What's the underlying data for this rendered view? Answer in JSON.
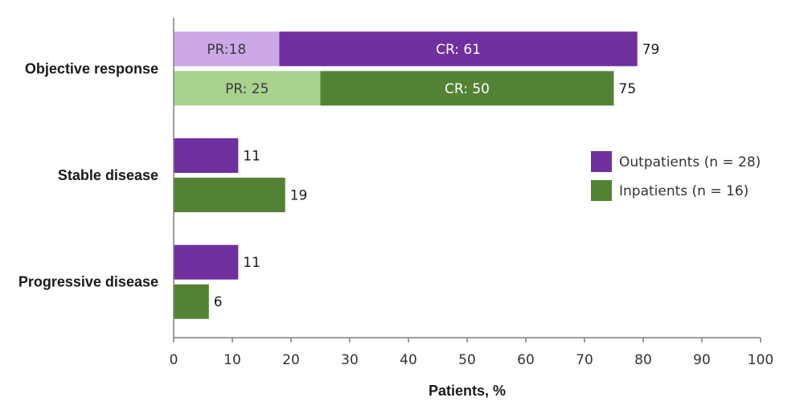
{
  "chart_data": {
    "type": "bar",
    "orientation": "horizontal",
    "stacked": true,
    "categories": [
      "Objective response",
      "Stable disease",
      "Progressive disease"
    ],
    "xlabel": "Patients, %",
    "xlim": [
      0,
      100
    ],
    "xticks": [
      0,
      10,
      20,
      30,
      40,
      50,
      60,
      70,
      80,
      90,
      100
    ],
    "grid": false,
    "legend_position": "right",
    "series": [
      {
        "name": "Outpatients (n = 28)",
        "color": "#7030a0",
        "light_color": "#cda8e6",
        "segment_label_colors": [
          "#3a3a3a",
          "#ffffff"
        ],
        "bars": [
          {
            "total": 79,
            "total_label": "79",
            "segments": [
              {
                "value": 18,
                "label": "PR:18",
                "shade": "light"
              },
              {
                "value": 61,
                "label": "CR: 61",
                "shade": "dark"
              }
            ]
          },
          {
            "total": 11,
            "total_label": "11",
            "segments": [
              {
                "value": 11,
                "label": "",
                "shade": "dark"
              }
            ]
          },
          {
            "total": 11,
            "total_label": "11",
            "segments": [
              {
                "value": 11,
                "label": "",
                "shade": "dark"
              }
            ]
          }
        ]
      },
      {
        "name": "Inpatients (n = 16)",
        "color": "#548235",
        "light_color": "#a9d18e",
        "segment_label_colors": [
          "#3a3a3a",
          "#ffffff"
        ],
        "bars": [
          {
            "total": 75,
            "total_label": "75",
            "segments": [
              {
                "value": 25,
                "label": "PR: 25",
                "shade": "light"
              },
              {
                "value": 50,
                "label": "CR: 50",
                "shade": "dark"
              }
            ]
          },
          {
            "total": 19,
            "total_label": "19",
            "segments": [
              {
                "value": 19,
                "label": "",
                "shade": "dark"
              }
            ]
          },
          {
            "total": 6,
            "total_label": "6",
            "segments": [
              {
                "value": 6,
                "label": "",
                "shade": "dark"
              }
            ]
          }
        ]
      }
    ]
  }
}
